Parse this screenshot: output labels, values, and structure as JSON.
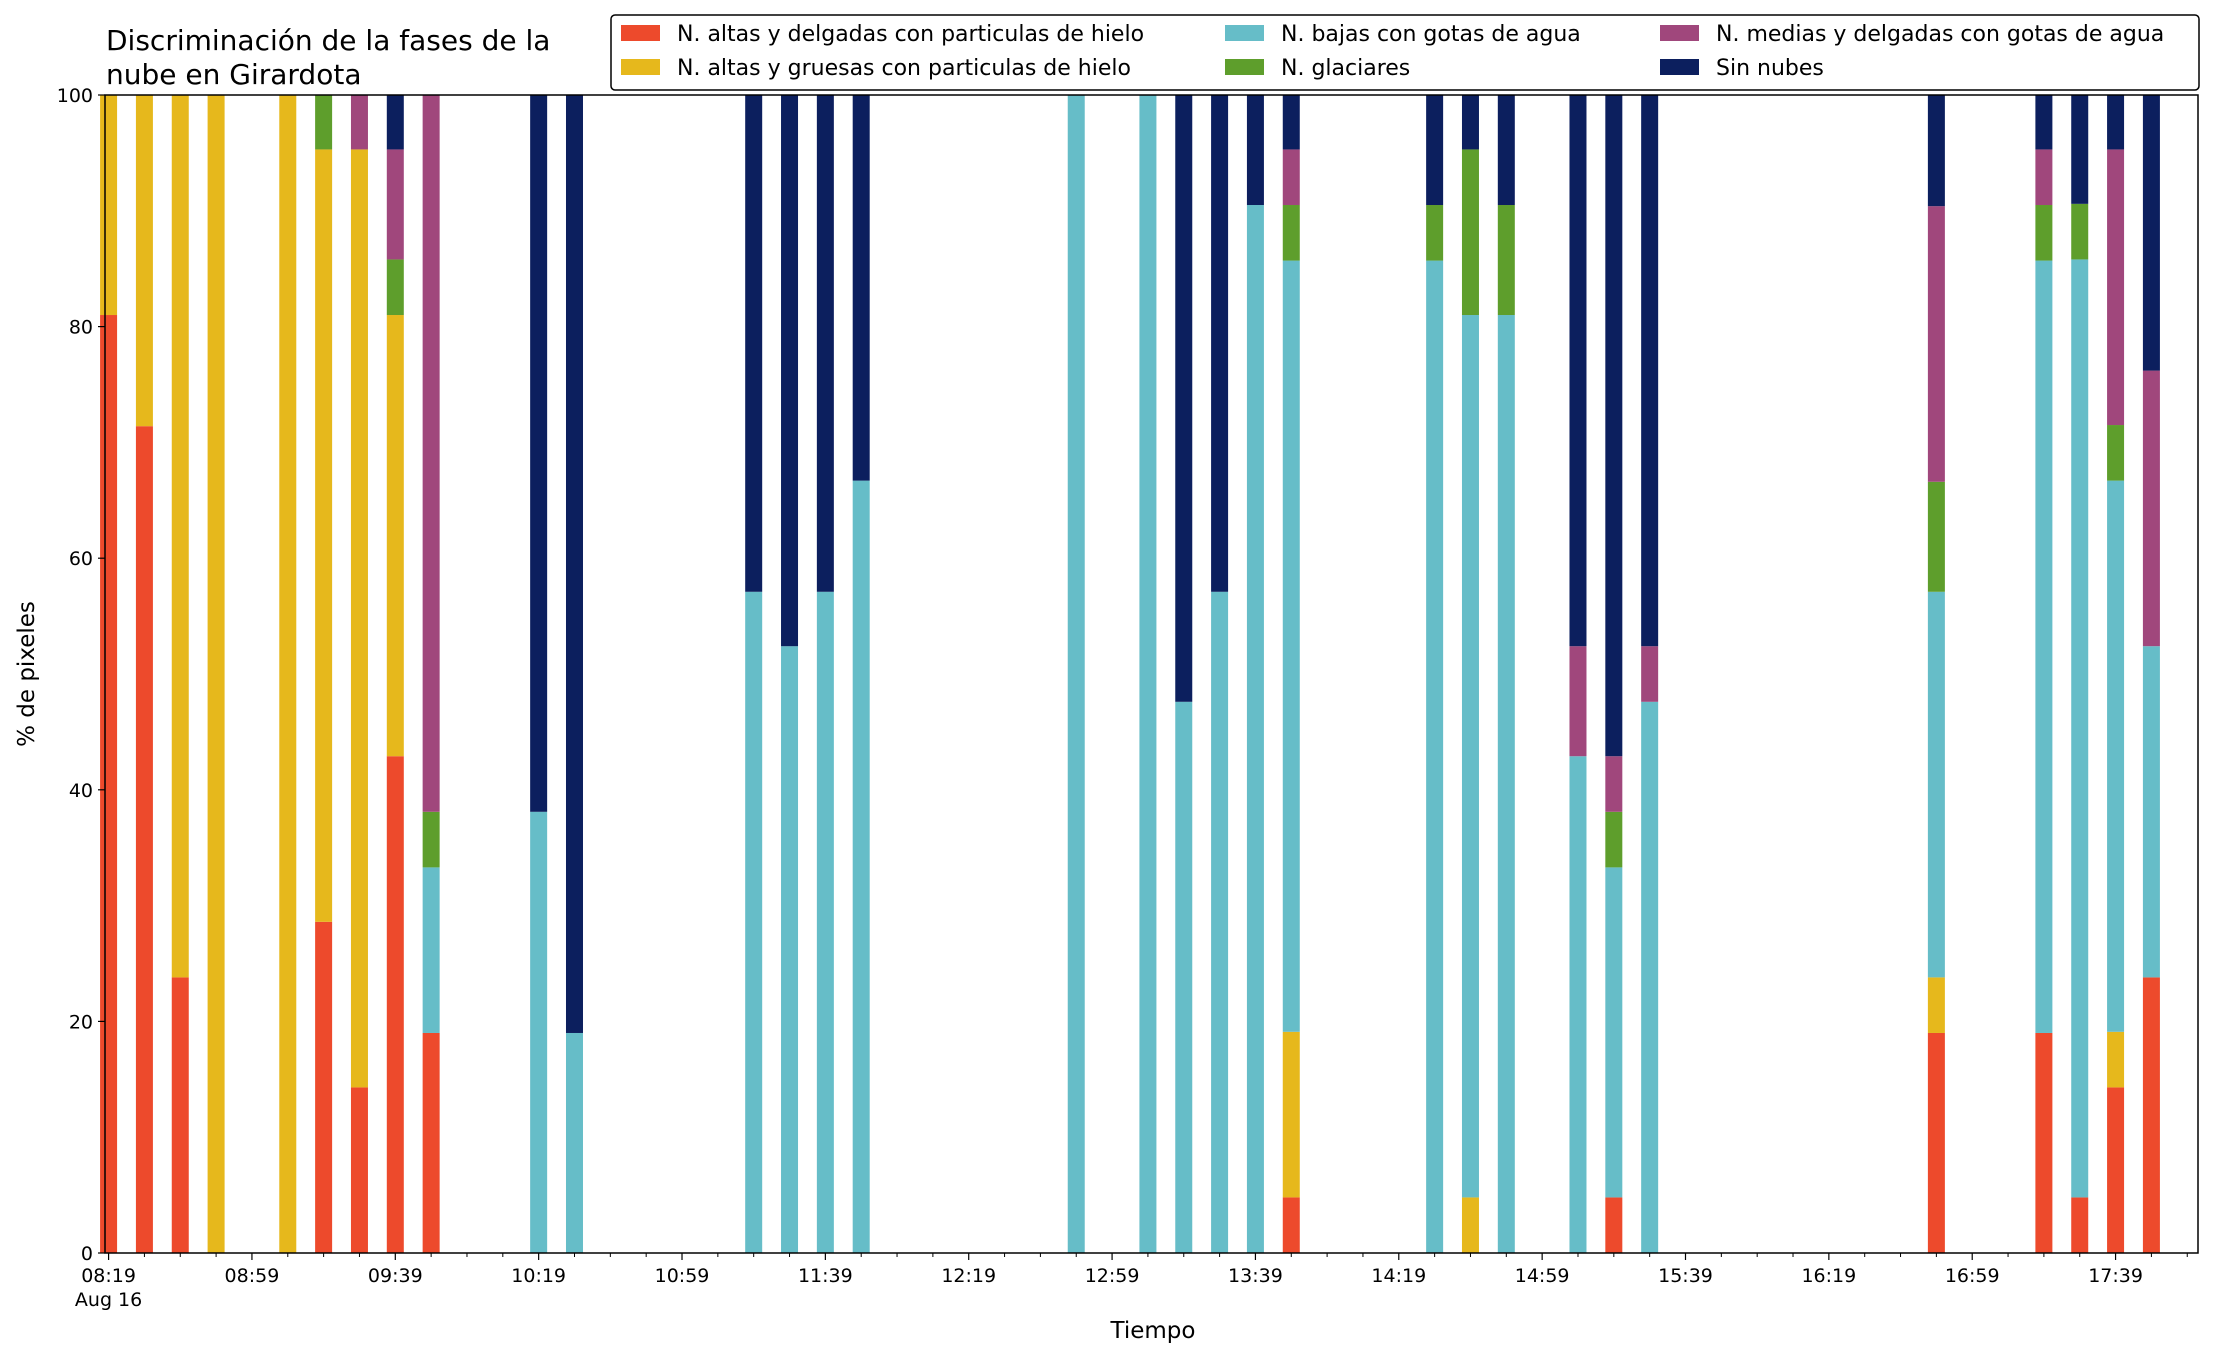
{
  "chart_data": {
    "type": "bar",
    "stacked": true,
    "title": "Discriminación de la fases de la nube en Girardota",
    "xlabel": "Tiempo",
    "ylabel": "% de pixeles",
    "ylim": [
      0,
      100
    ],
    "yticks": [
      "0",
      "20",
      "40",
      "60",
      "80",
      "100"
    ],
    "xlim_minutes": [
      -1,
      583
    ],
    "xticks": [
      {
        "t": 0,
        "label": "08:19",
        "sublabel": "Aug 16"
      },
      {
        "t": 40,
        "label": "08:59"
      },
      {
        "t": 80,
        "label": "09:39"
      },
      {
        "t": 120,
        "label": "10:19"
      },
      {
        "t": 160,
        "label": "10:59"
      },
      {
        "t": 200,
        "label": "11:39"
      },
      {
        "t": 240,
        "label": "12:19"
      },
      {
        "t": 280,
        "label": "12:59"
      },
      {
        "t": 320,
        "label": "13:39"
      },
      {
        "t": 360,
        "label": "14:19"
      },
      {
        "t": 400,
        "label": "14:59"
      },
      {
        "t": 440,
        "label": "15:39"
      },
      {
        "t": 480,
        "label": "16:19"
      },
      {
        "t": 520,
        "label": "16:59"
      },
      {
        "t": 560,
        "label": "17:39"
      }
    ],
    "legend_position": "top-right",
    "series": [
      {
        "name": "N. altas y delgadas con particulas de hielo",
        "color": "#ed4a2c"
      },
      {
        "name": "N. altas y gruesas con particulas de hielo",
        "color": "#e6b81c"
      },
      {
        "name": "N. bajas con gotas de agua",
        "color": "#66bdc8"
      },
      {
        "name": "N. glaciares",
        "color": "#5e9e2c"
      },
      {
        "name": "N. medias y delgadas con gotas de agua",
        "color": "#a0477c"
      },
      {
        "name": "Sin nubes",
        "color": "#0c1f5e"
      }
    ],
    "bars": [
      {
        "t": 0,
        "values": [
          81,
          19,
          0,
          0,
          0,
          0
        ]
      },
      {
        "t": 10,
        "values": [
          71.4,
          28.6,
          0,
          0,
          0,
          0
        ]
      },
      {
        "t": 20,
        "values": [
          23.8,
          76.2,
          0,
          0,
          0,
          0
        ]
      },
      {
        "t": 30,
        "values": [
          0,
          100,
          0,
          0,
          0,
          0
        ]
      },
      {
        "t": 50,
        "values": [
          0,
          100,
          0,
          0,
          0,
          0
        ]
      },
      {
        "t": 60,
        "values": [
          28.6,
          66.7,
          0,
          4.7,
          0,
          0
        ]
      },
      {
        "t": 70,
        "values": [
          14.3,
          81,
          0,
          0,
          4.7,
          0
        ]
      },
      {
        "t": 80,
        "values": [
          42.9,
          38.1,
          0,
          4.8,
          9.5,
          4.7
        ]
      },
      {
        "t": 90,
        "values": [
          19,
          0,
          14.3,
          4.8,
          61.9,
          0
        ]
      },
      {
        "t": 120,
        "values": [
          0,
          0,
          38.1,
          0,
          0,
          61.9
        ]
      },
      {
        "t": 130,
        "values": [
          0,
          0,
          19,
          0,
          0,
          81
        ]
      },
      {
        "t": 180,
        "values": [
          0,
          0,
          57.1,
          0,
          0,
          42.9
        ]
      },
      {
        "t": 190,
        "values": [
          0,
          0,
          52.4,
          0,
          0,
          47.6
        ]
      },
      {
        "t": 200,
        "values": [
          0,
          0,
          57.1,
          0,
          0,
          42.9
        ]
      },
      {
        "t": 210,
        "values": [
          0,
          0,
          66.7,
          0,
          0,
          33.3
        ]
      },
      {
        "t": 270,
        "values": [
          0,
          0,
          100,
          0,
          0,
          0
        ]
      },
      {
        "t": 290,
        "values": [
          0,
          0,
          100,
          0,
          0,
          0
        ]
      },
      {
        "t": 300,
        "values": [
          0,
          0,
          47.6,
          0,
          0,
          52.4
        ]
      },
      {
        "t": 310,
        "values": [
          0,
          0,
          57.1,
          0,
          0,
          42.9
        ]
      },
      {
        "t": 320,
        "values": [
          0,
          0,
          90.5,
          0,
          0,
          9.5
        ]
      },
      {
        "t": 330,
        "values": [
          4.8,
          14.3,
          66.6,
          4.8,
          4.8,
          4.7
        ]
      },
      {
        "t": 370,
        "values": [
          0,
          0,
          85.7,
          4.8,
          0,
          9.5
        ]
      },
      {
        "t": 380,
        "values": [
          0,
          4.8,
          76.2,
          14.3,
          0,
          4.7
        ]
      },
      {
        "t": 390,
        "values": [
          0,
          0,
          81,
          9.5,
          0,
          9.5
        ]
      },
      {
        "t": 410,
        "values": [
          0,
          0,
          42.9,
          0,
          9.5,
          47.6
        ]
      },
      {
        "t": 420,
        "values": [
          4.8,
          0,
          28.5,
          4.8,
          4.8,
          57.1
        ]
      },
      {
        "t": 430,
        "values": [
          0,
          0,
          47.6,
          0,
          4.8,
          47.6
        ]
      },
      {
        "t": 510,
        "values": [
          19,
          4.8,
          33.3,
          9.5,
          23.8,
          9.6
        ]
      },
      {
        "t": 540,
        "values": [
          19,
          0,
          66.7,
          4.8,
          4.8,
          4.7
        ]
      },
      {
        "t": 550,
        "values": [
          4.8,
          0,
          81,
          4.8,
          0,
          9.4
        ]
      },
      {
        "t": 560,
        "values": [
          14.3,
          4.8,
          47.6,
          4.8,
          23.8,
          4.7
        ]
      },
      {
        "t": 570,
        "values": [
          23.8,
          0,
          28.6,
          0,
          23.8,
          23.8
        ]
      }
    ]
  }
}
